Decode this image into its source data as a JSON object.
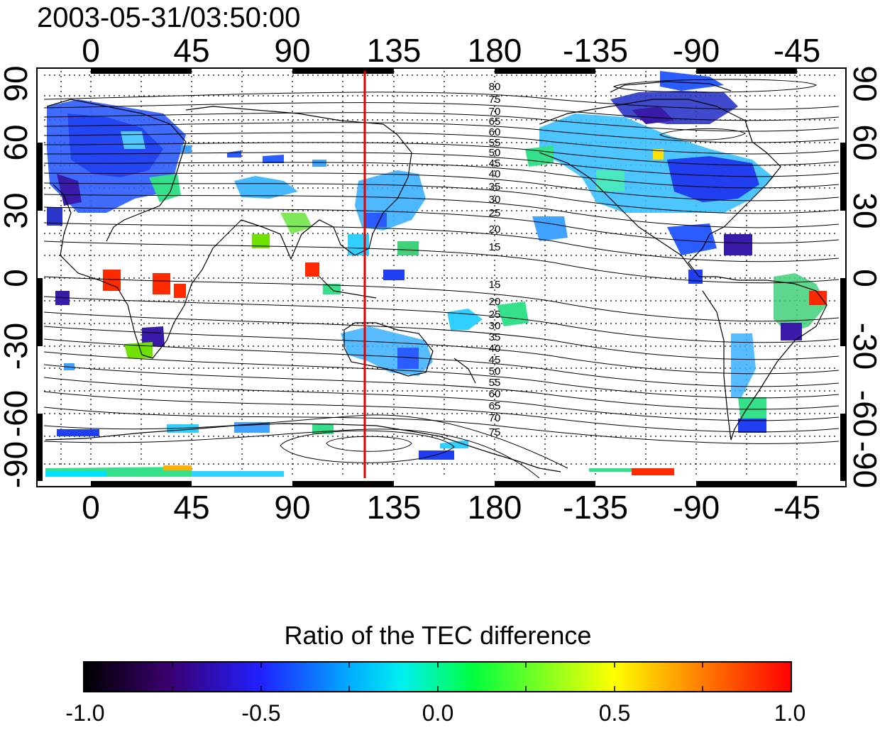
{
  "title": "2003-05-31/03:50:00",
  "map": {
    "x_ticks_top": [
      "0",
      "45",
      "90",
      "135",
      "180",
      "-135",
      "-90",
      "-45"
    ],
    "x_ticks_bottom": [
      "0",
      "45",
      "90",
      "135",
      "180",
      "-135",
      "-90",
      "-45"
    ],
    "y_ticks_left": [
      "90",
      "60",
      "30",
      "0",
      "-30",
      "-60",
      "-90"
    ],
    "y_ticks_right": [
      "90",
      "60",
      "30",
      "0",
      "-30",
      "-60",
      "-90"
    ],
    "reference_meridian_lon": 124,
    "contour_labels_north": [
      "80",
      "75",
      "70",
      "65",
      "60",
      "55",
      "50",
      "45",
      "40",
      "35",
      "30",
      "25",
      "20",
      "15"
    ],
    "contour_labels_south": [
      "15",
      "20",
      "25",
      "30",
      "35",
      "40",
      "45",
      "50",
      "55",
      "60",
      "65",
      "70",
      "75"
    ],
    "colors": {
      "meridian": "#e00000",
      "contour": "#000000",
      "grid": "#000000"
    }
  },
  "colorbar": {
    "title": "Ratio of the TEC difference",
    "tick_labels": [
      "-1.0",
      "-0.5",
      "0.0",
      "0.5",
      "1.0"
    ],
    "range": [
      -1.0,
      1.0
    ],
    "colormap": [
      "#000000",
      "#3a006e",
      "#2020ff",
      "#00e0ff",
      "#00ff40",
      "#ffff00",
      "#ff8000",
      "#ff0000"
    ]
  }
}
